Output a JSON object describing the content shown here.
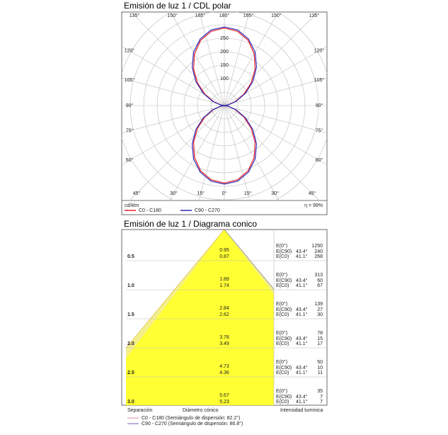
{
  "chart_data": [
    {
      "type": "polar",
      "title": "Emisión de luz 1 / CDL polar",
      "unit_label": "cd/klm",
      "efficiency_label": "η = 99%",
      "angle_ticks": [
        {
          "value": 0,
          "label": "0°"
        },
        {
          "value": 15,
          "label": "15°"
        },
        {
          "value": 30,
          "label": "30°"
        },
        {
          "value": 45,
          "label": "45°"
        },
        {
          "value": 60,
          "label": "60°"
        },
        {
          "value": 75,
          "label": "75°"
        },
        {
          "value": 90,
          "label": "90°"
        },
        {
          "value": 105,
          "label": "105°"
        },
        {
          "value": 120,
          "label": "120°"
        },
        {
          "value": 135,
          "label": "135°"
        },
        {
          "value": 150,
          "label": "150°"
        },
        {
          "value": 165,
          "label": "165°"
        },
        {
          "value": 180,
          "label": "180°"
        }
      ],
      "angles": [
        0,
        10,
        20,
        30,
        40,
        50,
        60,
        70,
        80,
        90,
        100,
        110,
        120,
        130,
        140,
        150,
        160,
        170,
        180
      ],
      "rticks": [
        100,
        150,
        200,
        250
      ],
      "rgrid": [
        50,
        100,
        150,
        200,
        250,
        300,
        350,
        400
      ],
      "series": [
        {
          "name": "C0 - C180",
          "color": "#e8202a",
          "values": [
            288,
            280,
            258,
            222,
            178,
            130,
            83,
            42,
            12,
            0,
            12,
            42,
            83,
            130,
            178,
            222,
            258,
            280,
            288
          ]
        },
        {
          "name": "C90 - C270",
          "color": "#2a2ab8",
          "values": [
            292,
            285,
            263,
            229,
            186,
            138,
            90,
            47,
            15,
            0,
            15,
            47,
            90,
            138,
            186,
            229,
            263,
            285,
            292
          ]
        }
      ]
    },
    {
      "type": "cone",
      "title": "Emisión de luz 1 / Diagrama conico",
      "heights": [
        0.5,
        {
          "value": 1,
          "label": "1.0"
        },
        1.5,
        {
          "value": 2,
          "label": "2.0"
        },
        2.5,
        {
          "value": 3,
          "label": "3.0"
        }
      ],
      "diameter_c90": [
        0.95,
        1.89,
        2.84,
        3.78,
        4.73,
        5.67
      ],
      "diameter_c0": [
        0.87,
        1.74,
        2.62,
        3.49,
        4.36,
        5.23
      ],
      "e0_label": "E(0°)",
      "ec90_label": "E(C90)",
      "ec90_angle": "43.4°",
      "ec0_label": "E(C0)",
      "ec0_angle": "41.1°",
      "e0": [
        1250,
        313,
        139,
        78,
        50,
        35
      ],
      "ec90": [
        240,
        60,
        27,
        15,
        10,
        7
      ],
      "ec0": [
        268,
        67,
        30,
        17,
        11,
        7
      ],
      "col_separation": "Separación",
      "col_diameter": "Diámetro cónico",
      "col_intensity": "Intensidad lumínica",
      "series": [
        {
          "name": "C0 - C180 (Semiángulo de dispersión: 82.2°)",
          "color": "#e68aa0"
        },
        {
          "name": "C90 - C270 (Semiángulo de dispersión: 86.8°)",
          "color": "#7a5cb0"
        }
      ]
    }
  ]
}
